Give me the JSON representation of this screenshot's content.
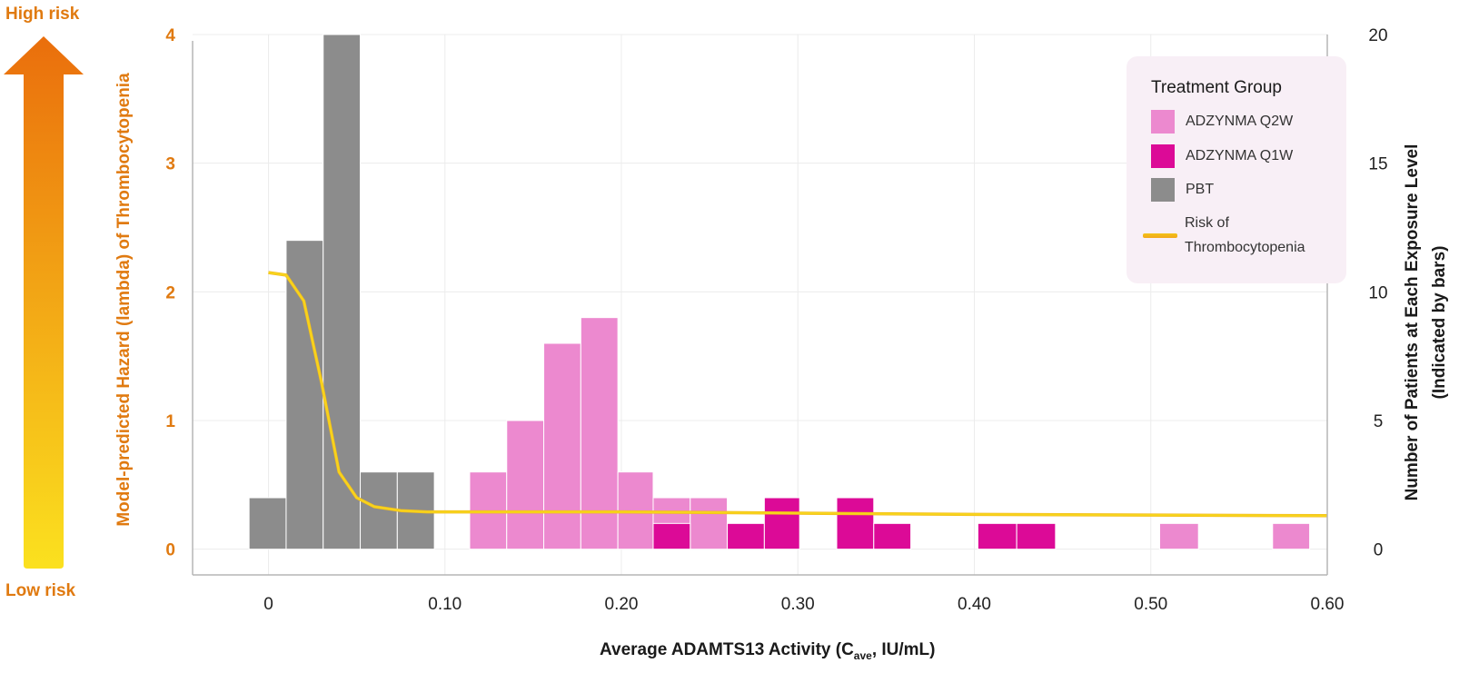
{
  "labels": {
    "high_risk": "High risk",
    "low_risk": "Low risk",
    "left_axis_title": "Model-predicted Hazard (lambda) of Thrombocytopenia",
    "right_axis_title_line1": "Number of Patients at Each Exposure Level",
    "right_axis_title_line2": "(Indicated by bars)",
    "x_axis_title_main": "Average ADAMTS13 Activity (C",
    "x_axis_title_sub": "ave",
    "x_axis_title_end": ", IU/mL)"
  },
  "legend": {
    "title": "Treatment Group",
    "q2w": "ADZYNMA Q2W",
    "q1w": "ADZYNMA Q1W",
    "pbt": "PBT",
    "risk_line1": "Risk of",
    "risk_line2": "Thrombocytopenia"
  },
  "colors": {
    "pbt": "#8c8c8c",
    "q2w": "#ec89cf",
    "q1w": "#dc0a97",
    "risk_line": "#f7d31c",
    "axis_label_orange": "#e07a10",
    "legend_bg": "#f8eff6"
  },
  "chart_data": {
    "type": "bar",
    "x_ticks": [
      "0",
      "0.10",
      "0.20",
      "0.30",
      "0.40",
      "0.50",
      "0.60"
    ],
    "x_tick_values": [
      0,
      0.1,
      0.2,
      0.3,
      0.4,
      0.5,
      0.6
    ],
    "xlim": [
      -0.043,
      0.6
    ],
    "y_left_ticks": [
      "0",
      "1",
      "2",
      "3",
      "4"
    ],
    "y_left_values": [
      0,
      1,
      2,
      3,
      4
    ],
    "y_left_lim": [
      -0.2,
      4
    ],
    "y_right_ticks": [
      "0",
      "5",
      "10",
      "15",
      "20"
    ],
    "y_right_values": [
      0,
      5,
      10,
      15,
      20
    ],
    "y_right_lim": [
      -1,
      20
    ],
    "series": [
      {
        "name": "PBT",
        "color_key": "pbt",
        "bars": [
          {
            "x0": -0.011,
            "x1": 0.01,
            "count": 2
          },
          {
            "x0": 0.01,
            "x1": 0.031,
            "count": 12
          },
          {
            "x0": 0.031,
            "x1": 0.052,
            "count": 20
          },
          {
            "x0": 0.052,
            "x1": 0.073,
            "count": 3
          },
          {
            "x0": 0.073,
            "x1": 0.094,
            "count": 3
          }
        ]
      },
      {
        "name": "ADZYNMA Q2W",
        "color_key": "q2w",
        "bars": [
          {
            "x0": 0.114,
            "x1": 0.135,
            "count": 3
          },
          {
            "x0": 0.135,
            "x1": 0.156,
            "count": 5
          },
          {
            "x0": 0.156,
            "x1": 0.177,
            "count": 8
          },
          {
            "x0": 0.177,
            "x1": 0.198,
            "count": 9
          },
          {
            "x0": 0.198,
            "x1": 0.218,
            "count": 3
          },
          {
            "x0": 0.218,
            "x1": 0.239,
            "count": 2
          },
          {
            "x0": 0.239,
            "x1": 0.26,
            "count": 2
          },
          {
            "x0": 0.505,
            "x1": 0.527,
            "count": 1
          },
          {
            "x0": 0.569,
            "x1": 0.59,
            "count": 1
          }
        ]
      },
      {
        "name": "ADZYNMA Q1W",
        "color_key": "q1w",
        "bars": [
          {
            "x0": 0.218,
            "x1": 0.239,
            "count": 1
          },
          {
            "x0": 0.26,
            "x1": 0.281,
            "count": 1
          },
          {
            "x0": 0.281,
            "x1": 0.301,
            "count": 2
          },
          {
            "x0": 0.322,
            "x1": 0.343,
            "count": 2
          },
          {
            "x0": 0.343,
            "x1": 0.364,
            "count": 1
          },
          {
            "x0": 0.402,
            "x1": 0.424,
            "count": 1
          },
          {
            "x0": 0.424,
            "x1": 0.446,
            "count": 1
          }
        ]
      }
    ],
    "risk_curve": {
      "name": "Risk of Thrombocytopenia",
      "x": [
        0,
        0.01,
        0.02,
        0.03,
        0.04,
        0.05,
        0.06,
        0.075,
        0.09,
        0.1,
        0.2,
        0.3,
        0.4,
        0.5,
        0.6
      ],
      "y": [
        2.15,
        2.13,
        1.93,
        1.3,
        0.6,
        0.4,
        0.33,
        0.3,
        0.29,
        0.29,
        0.29,
        0.28,
        0.27,
        0.265,
        0.26
      ]
    }
  }
}
